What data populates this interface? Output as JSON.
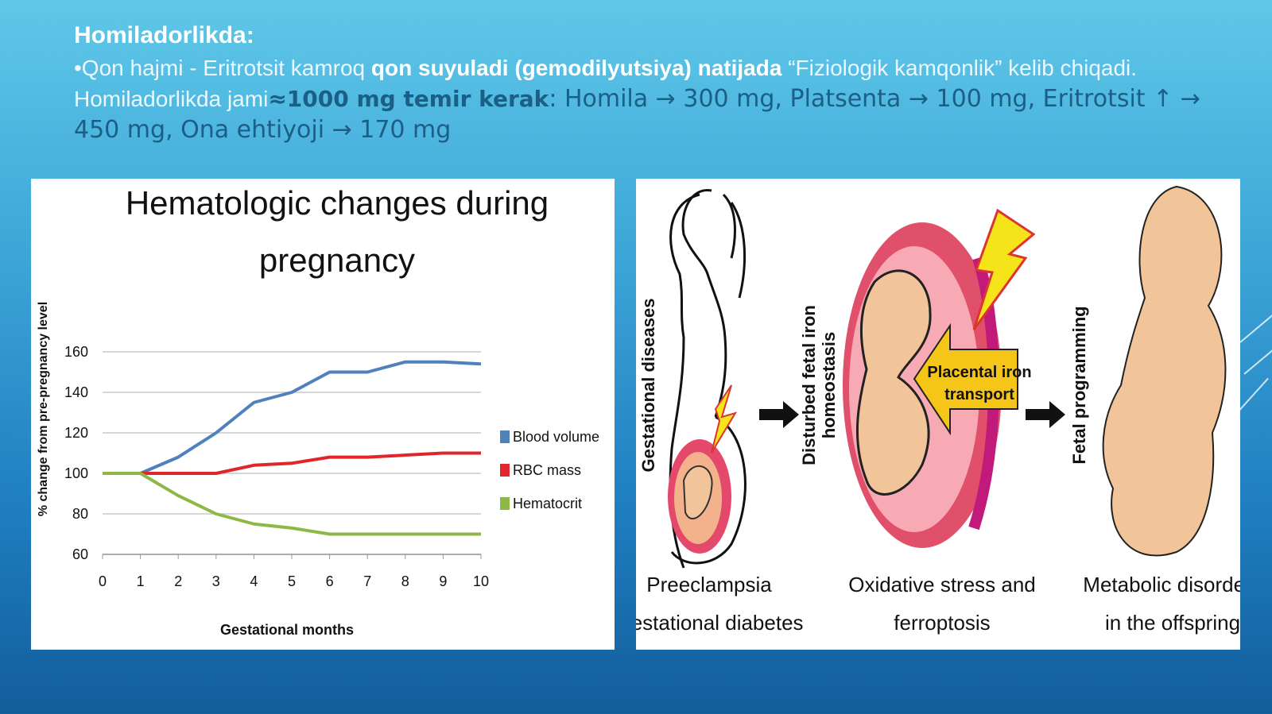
{
  "slide": {
    "heading": "Homiladorlikda:",
    "line_part1": "•Qon hajmi - Eritrotsit kamroq",
    "line_bold1": "qon suyuladi (gemodilyutsiya) natijada",
    "line_part2": "“Fiziologik kamqonlik” kelib chiqadi.",
    "line_part3": "Homiladorlikda jami",
    "line_bold2": "≈1000 mg temir kerak",
    "line_part4": ": Homila → 300 mg, Platsenta → 100 mg, Eritrotsit ↑ → 450 mg, Ona ehtiyoji → 170 mg"
  },
  "colors": {
    "blood_volume": "#4f81bd",
    "rbc_mass": "#e0262b",
    "hematocrit": "#8db848",
    "placenta_red": "#e0506a",
    "arrow_yellow": "#f5c518",
    "fetus_skin": "#f2c49a"
  },
  "chart_data": {
    "type": "line",
    "title_line1": "Hematologic changes during",
    "title_line2": "pregnancy",
    "xlabel": "Gestational months",
    "ylabel": "% change from pre-pregnancy level",
    "x": [
      0,
      1,
      2,
      3,
      4,
      5,
      6,
      7,
      8,
      9,
      10
    ],
    "xlim": [
      0,
      10
    ],
    "ylim": [
      60,
      160
    ],
    "yticks": [
      60,
      80,
      100,
      120,
      140,
      160
    ],
    "grid": true,
    "legend_position": "right",
    "series": [
      {
        "name": "Blood volume",
        "values": [
          100,
          100,
          108,
          120,
          135,
          140,
          150,
          150,
          155,
          155,
          154
        ]
      },
      {
        "name": "RBC mass",
        "values": [
          100,
          100,
          100,
          100,
          104,
          105,
          108,
          108,
          109,
          110,
          110
        ]
      },
      {
        "name": "Hematocrit",
        "values": [
          100,
          100,
          89,
          80,
          75,
          73,
          70,
          70,
          70,
          70,
          70
        ]
      }
    ]
  },
  "diagram": {
    "label_gestational_diseases": "Gestational diseases",
    "label_disturbed": "Disturbed fetal iron",
    "label_homeostasis": "homeostasis",
    "label_fetal_programming": "Fetal programming",
    "placental_line1": "Placental iron",
    "placental_line2": "transport",
    "caption1_line1": "Preeclampsia",
    "caption1_line2": "Gestational diabetes",
    "caption2_line1": "Oxidative stress and",
    "caption2_line2": "ferroptosis",
    "caption3_line1": "Metabolic disorders",
    "caption3_line2": "in the offspring"
  }
}
